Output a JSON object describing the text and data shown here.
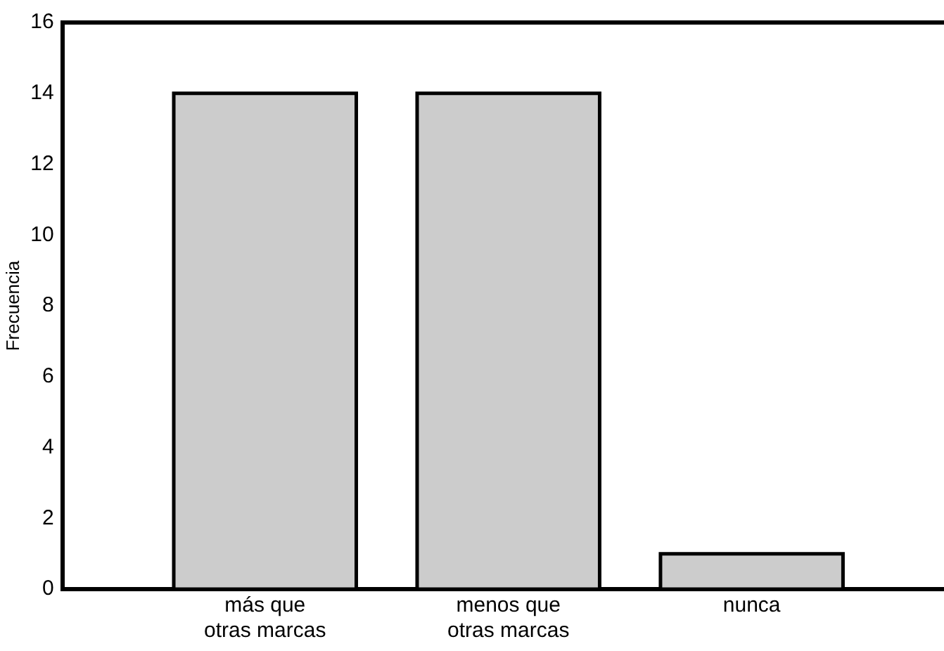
{
  "chart_data": {
    "type": "bar",
    "ylabel": "Frecuencia",
    "categories": [
      "más que\notras marcas",
      "menos que\notras marcas",
      "nunca"
    ],
    "values": [
      14,
      14,
      1
    ],
    "color": "#cccccc",
    "ylim": [
      0,
      16
    ],
    "yticks": [
      0,
      2,
      4,
      6,
      8,
      10,
      12,
      14,
      16
    ],
    "grid": false,
    "legend": false
  }
}
